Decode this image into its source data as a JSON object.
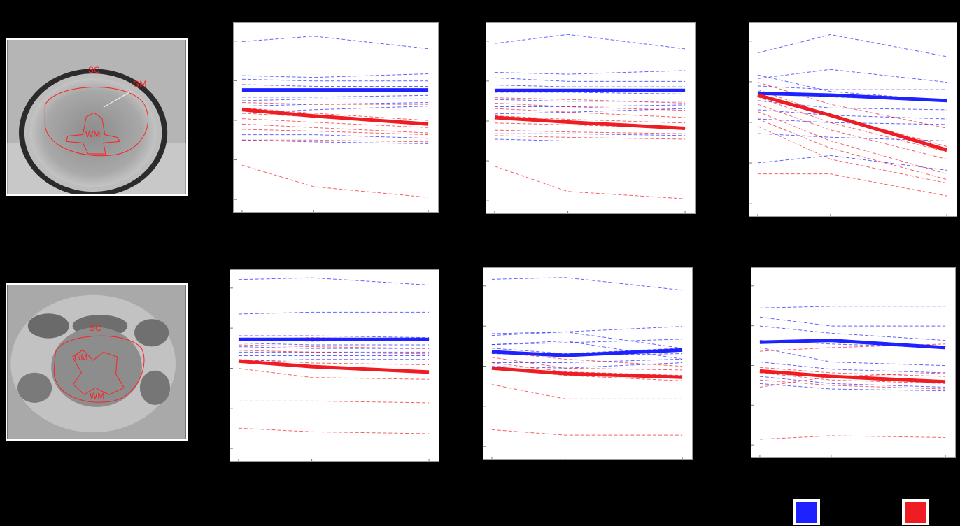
{
  "figure": {
    "images": [
      {
        "labels": {
          "sc": "SC",
          "gm": "GM",
          "wm": "WM"
        }
      },
      {
        "labels": {
          "sc": "SC",
          "gm": "GM",
          "wm": "WM"
        }
      }
    ],
    "legend": [
      {
        "color": "#1e22ff"
      },
      {
        "color": "#ee1d23"
      }
    ]
  },
  "chart_data": [
    {
      "type": "line",
      "x": [
        0,
        1,
        2.6
      ],
      "ylim": [
        0,
        100
      ],
      "grid": false,
      "series": [
        {
          "values": [
            92,
            95,
            88
          ]
        },
        {
          "values": [
            73,
            72,
            74
          ]
        },
        {
          "values": [
            71,
            70,
            70
          ]
        },
        {
          "values": [
            68,
            67,
            67
          ]
        },
        {
          "values": [
            64,
            64,
            64
          ]
        },
        {
          "values": [
            61,
            61,
            62
          ]
        },
        {
          "values": [
            59,
            60,
            60
          ]
        },
        {
          "values": [
            56,
            57,
            58
          ]
        },
        {
          "values": [
            52,
            54,
            56
          ]
        },
        {
          "values": [
            40,
            40,
            38
          ]
        },
        {
          "values": [
            37,
            36,
            35
          ]
        },
        {
          "values": [
            58,
            57,
            57
          ]
        },
        {
          "values": [
            55,
            52,
            48
          ]
        },
        {
          "values": [
            52,
            50,
            46
          ]
        },
        {
          "values": [
            49,
            47,
            44
          ]
        },
        {
          "values": [
            46,
            44,
            41
          ]
        },
        {
          "values": [
            43,
            42,
            40
          ]
        },
        {
          "values": [
            37,
            37,
            36
          ]
        },
        {
          "values": [
            23,
            11,
            5
          ]
        },
        {
          "values": [
            65,
            65,
            65
          ]
        },
        {
          "values": [
            54,
            50.5,
            46
          ]
        }
      ]
    },
    {
      "type": "line",
      "x": [
        0,
        1,
        2.6
      ],
      "ylim": [
        0,
        100
      ],
      "grid": false,
      "series": [
        {
          "values": [
            91,
            96,
            88
          ]
        },
        {
          "values": [
            75,
            74,
            76
          ]
        },
        {
          "values": [
            72,
            70,
            70
          ]
        },
        {
          "values": [
            68,
            67,
            67
          ]
        },
        {
          "values": [
            64,
            64,
            63
          ]
        },
        {
          "values": [
            60,
            59,
            59
          ]
        },
        {
          "values": [
            56,
            56,
            57
          ]
        },
        {
          "values": [
            52,
            53,
            55
          ]
        },
        {
          "values": [
            41,
            41,
            40
          ]
        },
        {
          "values": [
            38,
            37,
            37
          ]
        },
        {
          "values": [
            61,
            60,
            58
          ]
        },
        {
          "values": [
            58,
            56,
            54
          ]
        },
        {
          "values": [
            55,
            53,
            50
          ]
        },
        {
          "values": [
            51,
            49,
            47
          ]
        },
        {
          "values": [
            47,
            46,
            44
          ]
        },
        {
          "values": [
            43,
            42,
            41
          ]
        },
        {
          "values": [
            40,
            39,
            38
          ]
        },
        {
          "values": [
            23,
            9,
            5
          ]
        },
        {
          "values": [
            65,
            65,
            65
          ]
        },
        {
          "values": [
            50,
            47.5,
            44
          ]
        }
      ]
    },
    {
      "type": "line",
      "x": [
        0,
        1,
        2.6
      ],
      "ylim": [
        0,
        100
      ],
      "grid": false,
      "series": [
        {
          "values": [
            86,
            96,
            84
          ]
        },
        {
          "values": [
            72,
            77,
            70
          ]
        },
        {
          "values": [
            68,
            66,
            66
          ]
        },
        {
          "values": [
            65,
            62,
            60
          ]
        },
        {
          "values": [
            60,
            56,
            55
          ]
        },
        {
          "values": [
            55,
            52,
            50
          ]
        },
        {
          "values": [
            50,
            48,
            47
          ]
        },
        {
          "values": [
            42,
            40,
            38
          ]
        },
        {
          "values": [
            26,
            30,
            22
          ]
        },
        {
          "values": [
            74,
            65,
            60
          ]
        },
        {
          "values": [
            70,
            58,
            45
          ]
        },
        {
          "values": [
            66,
            52,
            35
          ]
        },
        {
          "values": [
            62,
            48,
            32
          ]
        },
        {
          "values": [
            58,
            44,
            28
          ]
        },
        {
          "values": [
            54,
            38,
            20
          ]
        },
        {
          "values": [
            50,
            34,
            17
          ]
        },
        {
          "values": [
            46,
            28,
            15
          ]
        },
        {
          "values": [
            20,
            20,
            8
          ]
        },
        {
          "values": [
            64,
            63,
            60
          ]
        },
        {
          "values": [
            63,
            52,
            33
          ]
        }
      ]
    },
    {
      "type": "line",
      "x": [
        0,
        1,
        2.6
      ],
      "ylim": [
        0,
        100
      ],
      "grid": false,
      "series": [
        {
          "values": [
            97,
            98,
            94
          ]
        },
        {
          "values": [
            78,
            79,
            79
          ]
        },
        {
          "values": [
            64,
            63,
            64
          ]
        },
        {
          "values": [
            62,
            61,
            61
          ]
        },
        {
          "values": [
            60,
            59,
            59
          ]
        },
        {
          "values": [
            57,
            57,
            57
          ]
        },
        {
          "values": [
            55,
            55,
            55
          ]
        },
        {
          "values": [
            52,
            53,
            53
          ]
        },
        {
          "values": [
            66,
            66,
            65
          ]
        },
        {
          "values": [
            64,
            65,
            64
          ]
        },
        {
          "values": [
            61,
            60,
            59
          ]
        },
        {
          "values": [
            58,
            57,
            56
          ]
        },
        {
          "values": [
            53,
            51,
            50
          ]
        },
        {
          "values": [
            48,
            43,
            42
          ]
        },
        {
          "values": [
            30,
            30,
            29
          ]
        },
        {
          "values": [
            15,
            13,
            12
          ]
        },
        {
          "values": [
            64,
            64,
            64
          ]
        },
        {
          "values": [
            52,
            49,
            46
          ]
        }
      ]
    },
    {
      "type": "line",
      "x": [
        0,
        1,
        2.6
      ],
      "ylim": [
        0,
        100
      ],
      "grid": false,
      "series": [
        {
          "values": [
            96,
            97,
            90
          ]
        },
        {
          "values": [
            66,
            67,
            70
          ]
        },
        {
          "values": [
            60,
            61,
            63
          ]
        },
        {
          "values": [
            58,
            55,
            58
          ]
        },
        {
          "values": [
            55,
            54,
            55
          ]
        },
        {
          "values": [
            50,
            50,
            52
          ]
        },
        {
          "values": [
            48,
            47,
            50
          ]
        },
        {
          "values": [
            65,
            67,
            58
          ]
        },
        {
          "values": [
            60,
            62,
            52
          ]
        },
        {
          "values": [
            56,
            52,
            48
          ]
        },
        {
          "values": [
            53,
            47,
            46
          ]
        },
        {
          "values": [
            50,
            45,
            43
          ]
        },
        {
          "values": [
            47,
            43,
            40
          ]
        },
        {
          "values": [
            38,
            30,
            30
          ]
        },
        {
          "values": [
            13,
            10,
            10
          ]
        },
        {
          "values": [
            56,
            54,
            57
          ]
        },
        {
          "values": [
            47,
            44,
            42
          ]
        }
      ]
    },
    {
      "type": "line",
      "x": [
        0,
        1,
        2.6
      ],
      "ylim": [
        0,
        100
      ],
      "grid": false,
      "series": [
        {
          "values": [
            80,
            81,
            81
          ]
        },
        {
          "values": [
            75,
            70,
            70
          ]
        },
        {
          "values": [
            70,
            66,
            62
          ]
        },
        {
          "values": [
            58,
            50,
            48
          ]
        },
        {
          "values": [
            50,
            46,
            44
          ]
        },
        {
          "values": [
            42,
            38,
            36
          ]
        },
        {
          "values": [
            38,
            35,
            34
          ]
        },
        {
          "values": [
            62,
            60,
            58
          ]
        },
        {
          "values": [
            56,
            58,
            60
          ]
        },
        {
          "values": [
            47,
            44,
            42
          ]
        },
        {
          "values": [
            44,
            40,
            38
          ]
        },
        {
          "values": [
            40,
            37,
            35
          ]
        },
        {
          "values": [
            36,
            42,
            44
          ]
        },
        {
          "values": [
            7,
            9,
            8
          ]
        },
        {
          "values": [
            61,
            62,
            58
          ]
        },
        {
          "values": [
            45,
            42,
            39
          ]
        }
      ]
    }
  ]
}
